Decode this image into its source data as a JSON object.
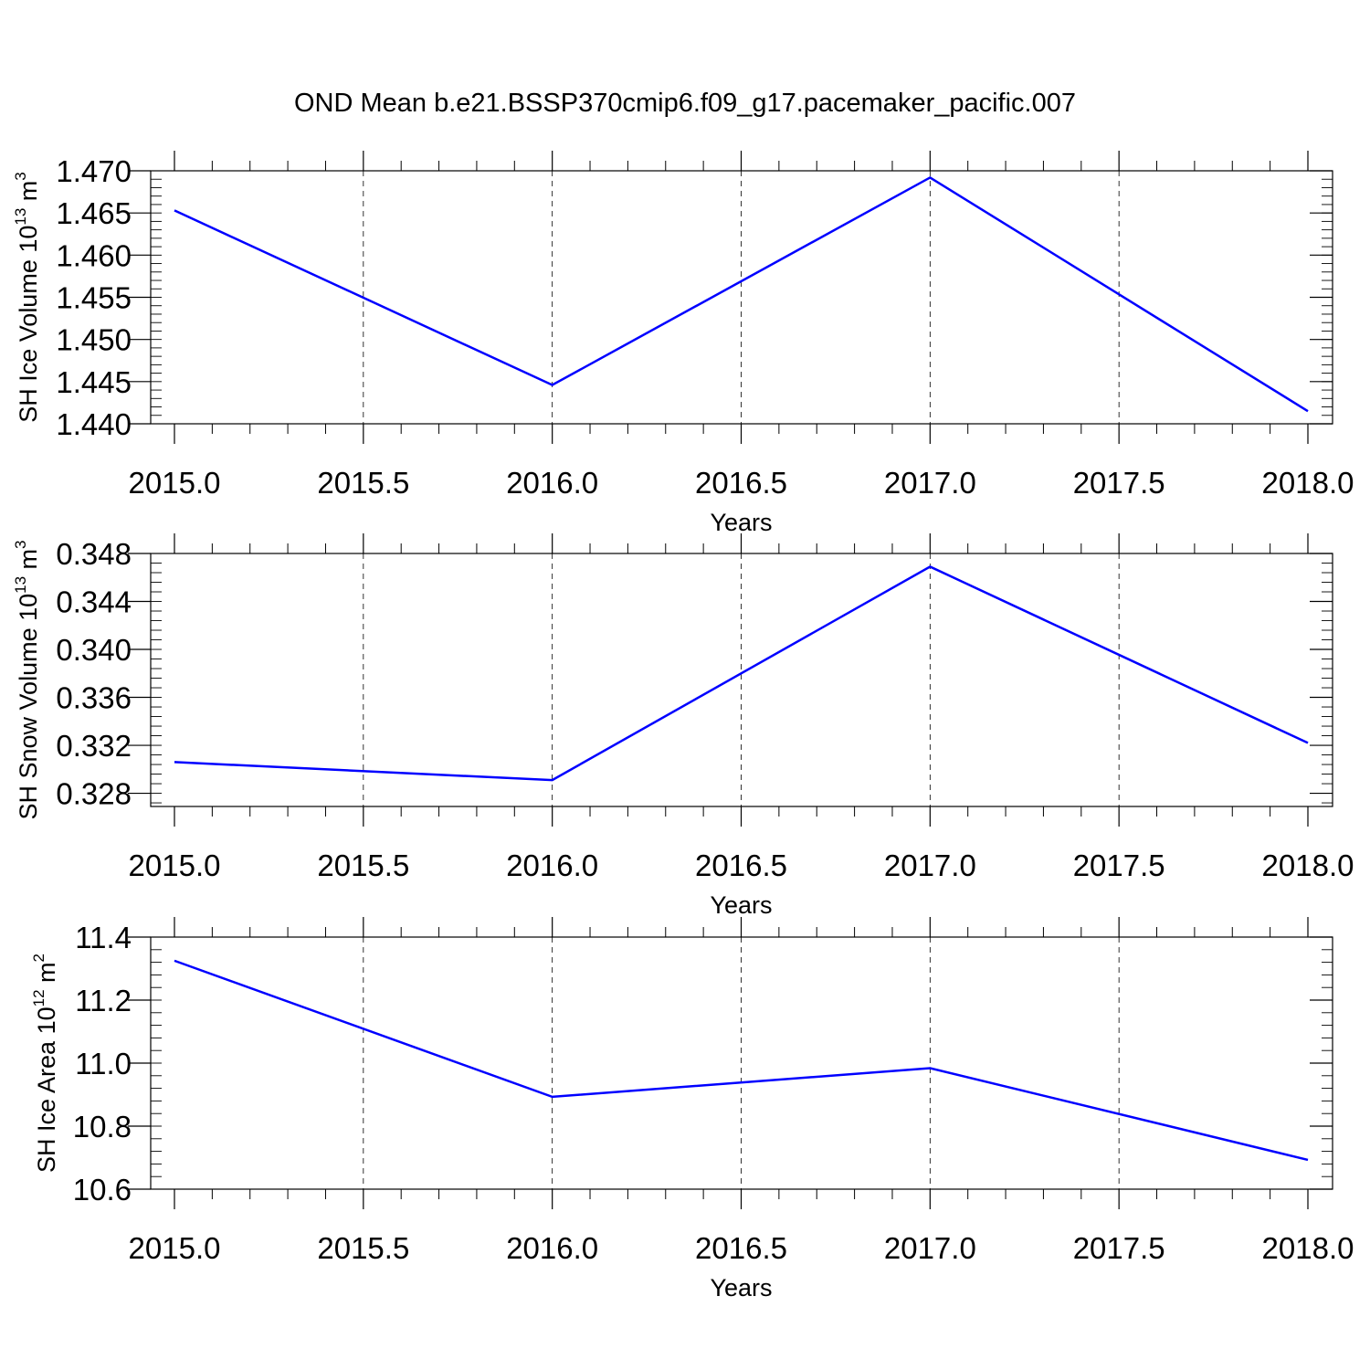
{
  "title": "OND Mean b.e21.BSSP370cmip6.f09_g17.pacemaker_pacific.007",
  "style": {
    "line_color": "#0000ff",
    "axis_color": "#000000",
    "grid_color": "#000000"
  },
  "chart_data": [
    {
      "type": "line",
      "x": [
        2015,
        2016,
        2017,
        2018
      ],
      "series": [
        {
          "values": [
            1.4653,
            1.4446,
            1.4692,
            1.4415
          ]
        }
      ],
      "xlabel": "Years",
      "ylabel": {
        "main": "SH Ice Volume 10",
        "sup1": "13",
        "unit": " m",
        "sup2": "3"
      },
      "xlim": [
        2015,
        2018.06
      ],
      "ylim": [
        1.44,
        1.47
      ],
      "xticks": [
        2015.0,
        2015.5,
        2016.0,
        2016.5,
        2017.0,
        2017.5,
        2018.0
      ],
      "xtick_labels": [
        "2015.0",
        "2015.5",
        "2016.0",
        "2016.5",
        "2017.0",
        "2017.5",
        "2018.0"
      ],
      "yticks": [
        1.44,
        1.445,
        1.45,
        1.455,
        1.46,
        1.465,
        1.47
      ],
      "ytick_labels": [
        "1.440",
        "1.445",
        "1.450",
        "1.455",
        "1.460",
        "1.465",
        "1.470"
      ],
      "yminor": 0.001,
      "grid": "vertical-dashed"
    },
    {
      "type": "line",
      "x": [
        2015,
        2016,
        2017,
        2018
      ],
      "series": [
        {
          "values": [
            0.3306,
            0.3291,
            0.3469,
            0.3322
          ]
        }
      ],
      "xlabel": "Years",
      "ylabel": {
        "main": "SH Snow Volume 10",
        "sup1": "13",
        "unit": " m",
        "sup2": "3"
      },
      "xlim": [
        2015,
        2018.06
      ],
      "ylim": [
        0.3269,
        0.348
      ],
      "xticks": [
        2015.0,
        2015.5,
        2016.0,
        2016.5,
        2017.0,
        2017.5,
        2018.0
      ],
      "xtick_labels": [
        "2015.0",
        "2015.5",
        "2016.0",
        "2016.5",
        "2017.0",
        "2017.5",
        "2018.0"
      ],
      "yticks": [
        0.328,
        0.332,
        0.336,
        0.34,
        0.344,
        0.348
      ],
      "ytick_labels": [
        "0.328",
        "0.332",
        "0.336",
        "0.340",
        "0.344",
        "0.348"
      ],
      "yminor": 0.0008,
      "grid": "vertical-dashed"
    },
    {
      "type": "line",
      "x": [
        2015,
        2016,
        2017,
        2018
      ],
      "series": [
        {
          "values": [
            11.325,
            10.893,
            10.984,
            10.693
          ]
        }
      ],
      "xlabel": "Years",
      "ylabel": {
        "main": "SH Ice Area 10",
        "sup1": "12",
        "unit": " m",
        "sup2": "2"
      },
      "xlim": [
        2015,
        2018.06
      ],
      "ylim": [
        10.6,
        11.4
      ],
      "xticks": [
        2015.0,
        2015.5,
        2016.0,
        2016.5,
        2017.0,
        2017.5,
        2018.0
      ],
      "xtick_labels": [
        "2015.0",
        "2015.5",
        "2016.0",
        "2016.5",
        "2017.0",
        "2017.5",
        "2018.0"
      ],
      "yticks": [
        10.6,
        10.8,
        11.0,
        11.2,
        11.4
      ],
      "ytick_labels": [
        "10.6",
        "10.8",
        "11.0",
        "11.2",
        "11.4"
      ],
      "yminor": 0.04,
      "grid": "vertical-dashed"
    }
  ]
}
